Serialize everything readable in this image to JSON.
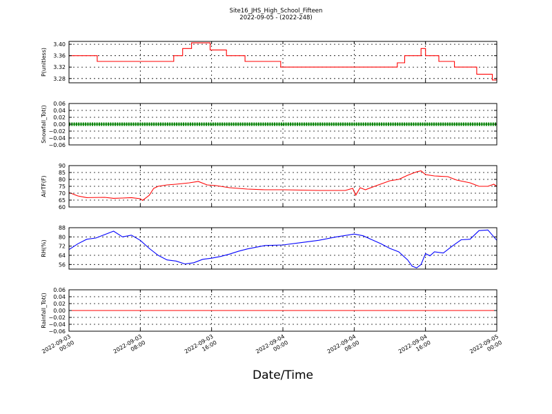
{
  "chart_data": {
    "type": "line",
    "title": "Site16_JHS_High_School_Fifteen",
    "subtitle": "2022-09-05 - (2022-248)",
    "xlabel": "Date/Time",
    "x_range": [
      "2022-09-03 00:00",
      "2022-09-05 00:00"
    ],
    "x_ticks": [
      {
        "t": "2022-09-03 00:00",
        "label": [
          "2022-09-03",
          "00:00"
        ]
      },
      {
        "t": "2022-09-03 08:00",
        "label": [
          "2022-09-03",
          "08:00"
        ]
      },
      {
        "t": "2022-09-03 16:00",
        "label": [
          "2022-09-03",
          "16:00"
        ]
      },
      {
        "t": "2022-09-04 00:00",
        "label": [
          "2022-09-04",
          "00:00"
        ]
      },
      {
        "t": "2022-09-04 08:00",
        "label": [
          "2022-09-04",
          "08:00"
        ]
      },
      {
        "t": "2022-09-04 16:00",
        "label": [
          "2022-09-04",
          "16:00"
        ]
      },
      {
        "t": "2022-09-05 00:00",
        "label": [
          "2022-09-05",
          "00:00"
        ]
      }
    ],
    "grid": true,
    "panels": [
      {
        "ylabel": "P(unitless)",
        "ylim": [
          3.265,
          3.41
        ],
        "yticks": [
          3.28,
          3.32,
          3.36,
          3.4
        ],
        "ytick_labels": [
          "3.28",
          "3.32",
          "3.36",
          "3.40"
        ],
        "color": "#ff0000",
        "step": true,
        "series": [
          {
            "x": "2022-09-03 00:00",
            "y": 3.36
          },
          {
            "x": "2022-09-03 03:00",
            "y": 3.36
          },
          {
            "x": "2022-09-03 03:10",
            "y": 3.34
          },
          {
            "x": "2022-09-03 08:00",
            "y": 3.34
          },
          {
            "x": "2022-09-03 11:30",
            "y": 3.34
          },
          {
            "x": "2022-09-03 11:45",
            "y": 3.36
          },
          {
            "x": "2022-09-03 12:45",
            "y": 3.385
          },
          {
            "x": "2022-09-03 13:45",
            "y": 3.405
          },
          {
            "x": "2022-09-03 15:50",
            "y": 3.38
          },
          {
            "x": "2022-09-03 17:40",
            "y": 3.36
          },
          {
            "x": "2022-09-03 19:45",
            "y": 3.34
          },
          {
            "x": "2022-09-03 23:45",
            "y": 3.32
          },
          {
            "x": "2022-09-04 04:00",
            "y": 3.32
          },
          {
            "x": "2022-09-04 08:00",
            "y": 3.32
          },
          {
            "x": "2022-09-04 12:00",
            "y": 3.32
          },
          {
            "x": "2022-09-04 12:50",
            "y": 3.335
          },
          {
            "x": "2022-09-04 13:40",
            "y": 3.36
          },
          {
            "x": "2022-09-04 15:30",
            "y": 3.385
          },
          {
            "x": "2022-09-04 16:00",
            "y": 3.36
          },
          {
            "x": "2022-09-04 17:30",
            "y": 3.34
          },
          {
            "x": "2022-09-04 19:15",
            "y": 3.32
          },
          {
            "x": "2022-09-04 21:45",
            "y": 3.295
          },
          {
            "x": "2022-09-04 23:30",
            "y": 3.275
          },
          {
            "x": "2022-09-05 00:00",
            "y": 3.285
          }
        ]
      },
      {
        "ylabel": "Snowfall_Tot()",
        "ylim": [
          -0.06,
          0.06
        ],
        "yticks": [
          -0.06,
          -0.04,
          -0.02,
          0.0,
          0.02,
          0.04,
          0.06
        ],
        "ytick_labels": [
          "−0.06",
          "−0.04",
          "−0.02",
          "0.00",
          "0.02",
          "0.04",
          "0.06"
        ],
        "color": "#008000",
        "markers": true,
        "series": [
          {
            "x": "2022-09-03 00:00",
            "y": 0.0
          },
          {
            "x": "2022-09-05 00:00",
            "y": 0.0
          }
        ]
      },
      {
        "ylabel": "AirTF(F)",
        "ylim": [
          60,
          90
        ],
        "yticks": [
          60,
          65,
          70,
          75,
          80,
          85,
          90
        ],
        "ytick_labels": [
          "60",
          "65",
          "70",
          "75",
          "80",
          "85",
          "90"
        ],
        "color": "#ff0000",
        "series": [
          {
            "x": "2022-09-03 00:00",
            "y": 70.5
          },
          {
            "x": "2022-09-03 01:00",
            "y": 68.0
          },
          {
            "x": "2022-09-03 02:00",
            "y": 66.8
          },
          {
            "x": "2022-09-03 04:00",
            "y": 67.0
          },
          {
            "x": "2022-09-03 05:00",
            "y": 66.3
          },
          {
            "x": "2022-09-03 06:00",
            "y": 66.5
          },
          {
            "x": "2022-09-03 07:00",
            "y": 66.8
          },
          {
            "x": "2022-09-03 08:00",
            "y": 66.0
          },
          {
            "x": "2022-09-03 08:15",
            "y": 64.8
          },
          {
            "x": "2022-09-03 09:00",
            "y": 68.5
          },
          {
            "x": "2022-09-03 09:30",
            "y": 73.5
          },
          {
            "x": "2022-09-03 10:00",
            "y": 75.0
          },
          {
            "x": "2022-09-03 11:00",
            "y": 76.0
          },
          {
            "x": "2022-09-03 12:00",
            "y": 76.5
          },
          {
            "x": "2022-09-03 13:30",
            "y": 77.5
          },
          {
            "x": "2022-09-03 14:30",
            "y": 78.5
          },
          {
            "x": "2022-09-03 15:30",
            "y": 76.0
          },
          {
            "x": "2022-09-03 16:30",
            "y": 75.5
          },
          {
            "x": "2022-09-03 18:00",
            "y": 74.0
          },
          {
            "x": "2022-09-03 20:00",
            "y": 73.0
          },
          {
            "x": "2022-09-03 22:00",
            "y": 72.5
          },
          {
            "x": "2022-09-04 00:00",
            "y": 72.5
          },
          {
            "x": "2022-09-04 04:00",
            "y": 72.0
          },
          {
            "x": "2022-09-04 07:00",
            "y": 72.0
          },
          {
            "x": "2022-09-04 07:50",
            "y": 73.5
          },
          {
            "x": "2022-09-04 08:10",
            "y": 68.5
          },
          {
            "x": "2022-09-04 08:40",
            "y": 74.0
          },
          {
            "x": "2022-09-04 09:15",
            "y": 72.5
          },
          {
            "x": "2022-09-04 10:30",
            "y": 75.5
          },
          {
            "x": "2022-09-04 12:00",
            "y": 79.0
          },
          {
            "x": "2022-09-04 13:00",
            "y": 80.0
          },
          {
            "x": "2022-09-04 14:00",
            "y": 83.0
          },
          {
            "x": "2022-09-04 15:00",
            "y": 85.5
          },
          {
            "x": "2022-09-04 15:30",
            "y": 86.2
          },
          {
            "x": "2022-09-04 16:00",
            "y": 83.5
          },
          {
            "x": "2022-09-04 17:00",
            "y": 82.5
          },
          {
            "x": "2022-09-04 18:30",
            "y": 82.0
          },
          {
            "x": "2022-09-04 19:30",
            "y": 79.5
          },
          {
            "x": "2022-09-04 21:00",
            "y": 77.5
          },
          {
            "x": "2022-09-04 22:00",
            "y": 75.0
          },
          {
            "x": "2022-09-04 23:00",
            "y": 75.0
          },
          {
            "x": "2022-09-04 23:40",
            "y": 76.5
          },
          {
            "x": "2022-09-05 00:00",
            "y": 75.0
          }
        ]
      },
      {
        "ylabel": "RH(%)",
        "ylim": [
          52,
          88
        ],
        "yticks": [
          56,
          64,
          72,
          80,
          88
        ],
        "ytick_labels": [
          "56",
          "64",
          "72",
          "80",
          "88"
        ],
        "color": "#0000ff",
        "series": [
          {
            "x": "2022-09-03 00:00",
            "y": 69.0
          },
          {
            "x": "2022-09-03 01:00",
            "y": 74.0
          },
          {
            "x": "2022-09-03 02:00",
            "y": 78.0
          },
          {
            "x": "2022-09-03 03:00",
            "y": 79.0
          },
          {
            "x": "2022-09-03 04:00",
            "y": 82.0
          },
          {
            "x": "2022-09-03 05:00",
            "y": 85.0
          },
          {
            "x": "2022-09-03 06:00",
            "y": 80.0
          },
          {
            "x": "2022-09-03 07:00",
            "y": 81.5
          },
          {
            "x": "2022-09-03 08:00",
            "y": 77.0
          },
          {
            "x": "2022-09-03 09:00",
            "y": 70.0
          },
          {
            "x": "2022-09-03 10:00",
            "y": 64.0
          },
          {
            "x": "2022-09-03 11:00",
            "y": 60.0
          },
          {
            "x": "2022-09-03 12:00",
            "y": 59.0
          },
          {
            "x": "2022-09-03 13:00",
            "y": 56.5
          },
          {
            "x": "2022-09-03 14:00",
            "y": 57.5
          },
          {
            "x": "2022-09-03 15:00",
            "y": 60.5
          },
          {
            "x": "2022-09-03 16:00",
            "y": 61.5
          },
          {
            "x": "2022-09-03 17:00",
            "y": 63.0
          },
          {
            "x": "2022-09-03 18:00",
            "y": 65.0
          },
          {
            "x": "2022-09-03 19:00",
            "y": 67.5
          },
          {
            "x": "2022-09-03 20:00",
            "y": 69.5
          },
          {
            "x": "2022-09-03 22:00",
            "y": 72.5
          },
          {
            "x": "2022-09-04 00:00",
            "y": 73.0
          },
          {
            "x": "2022-09-04 02:00",
            "y": 75.0
          },
          {
            "x": "2022-09-04 04:00",
            "y": 77.0
          },
          {
            "x": "2022-09-04 06:00",
            "y": 80.0
          },
          {
            "x": "2022-09-04 08:00",
            "y": 82.5
          },
          {
            "x": "2022-09-04 09:00",
            "y": 81.0
          },
          {
            "x": "2022-09-04 10:00",
            "y": 77.5
          },
          {
            "x": "2022-09-04 11:00",
            "y": 74.0
          },
          {
            "x": "2022-09-04 12:00",
            "y": 70.0
          },
          {
            "x": "2022-09-04 13:00",
            "y": 67.0
          },
          {
            "x": "2022-09-04 14:00",
            "y": 60.0
          },
          {
            "x": "2022-09-04 14:30",
            "y": 54.5
          },
          {
            "x": "2022-09-04 15:00",
            "y": 53.0
          },
          {
            "x": "2022-09-04 15:30",
            "y": 56.0
          },
          {
            "x": "2022-09-04 16:00",
            "y": 65.5
          },
          {
            "x": "2022-09-04 16:30",
            "y": 63.5
          },
          {
            "x": "2022-09-04 17:00",
            "y": 67.0
          },
          {
            "x": "2022-09-04 18:00",
            "y": 66.0
          },
          {
            "x": "2022-09-04 19:00",
            "y": 72.0
          },
          {
            "x": "2022-09-04 20:00",
            "y": 77.5
          },
          {
            "x": "2022-09-04 21:00",
            "y": 78.0
          },
          {
            "x": "2022-09-04 22:00",
            "y": 85.5
          },
          {
            "x": "2022-09-04 23:00",
            "y": 86.0
          },
          {
            "x": "2022-09-04 23:40",
            "y": 80.0
          },
          {
            "x": "2022-09-05 00:00",
            "y": 77.0
          }
        ]
      },
      {
        "ylabel": "Rainfall_Tot()",
        "ylim": [
          -0.06,
          0.06
        ],
        "yticks": [
          -0.06,
          -0.04,
          -0.02,
          0.0,
          0.02,
          0.04,
          0.06
        ],
        "ytick_labels": [
          "−0.06",
          "−0.04",
          "−0.02",
          "0.00",
          "0.02",
          "0.04",
          "0.06"
        ],
        "color": "#ff0000",
        "series": [
          {
            "x": "2022-09-03 00:00",
            "y": 0.0
          },
          {
            "x": "2022-09-05 00:00",
            "y": 0.0
          }
        ]
      }
    ]
  }
}
